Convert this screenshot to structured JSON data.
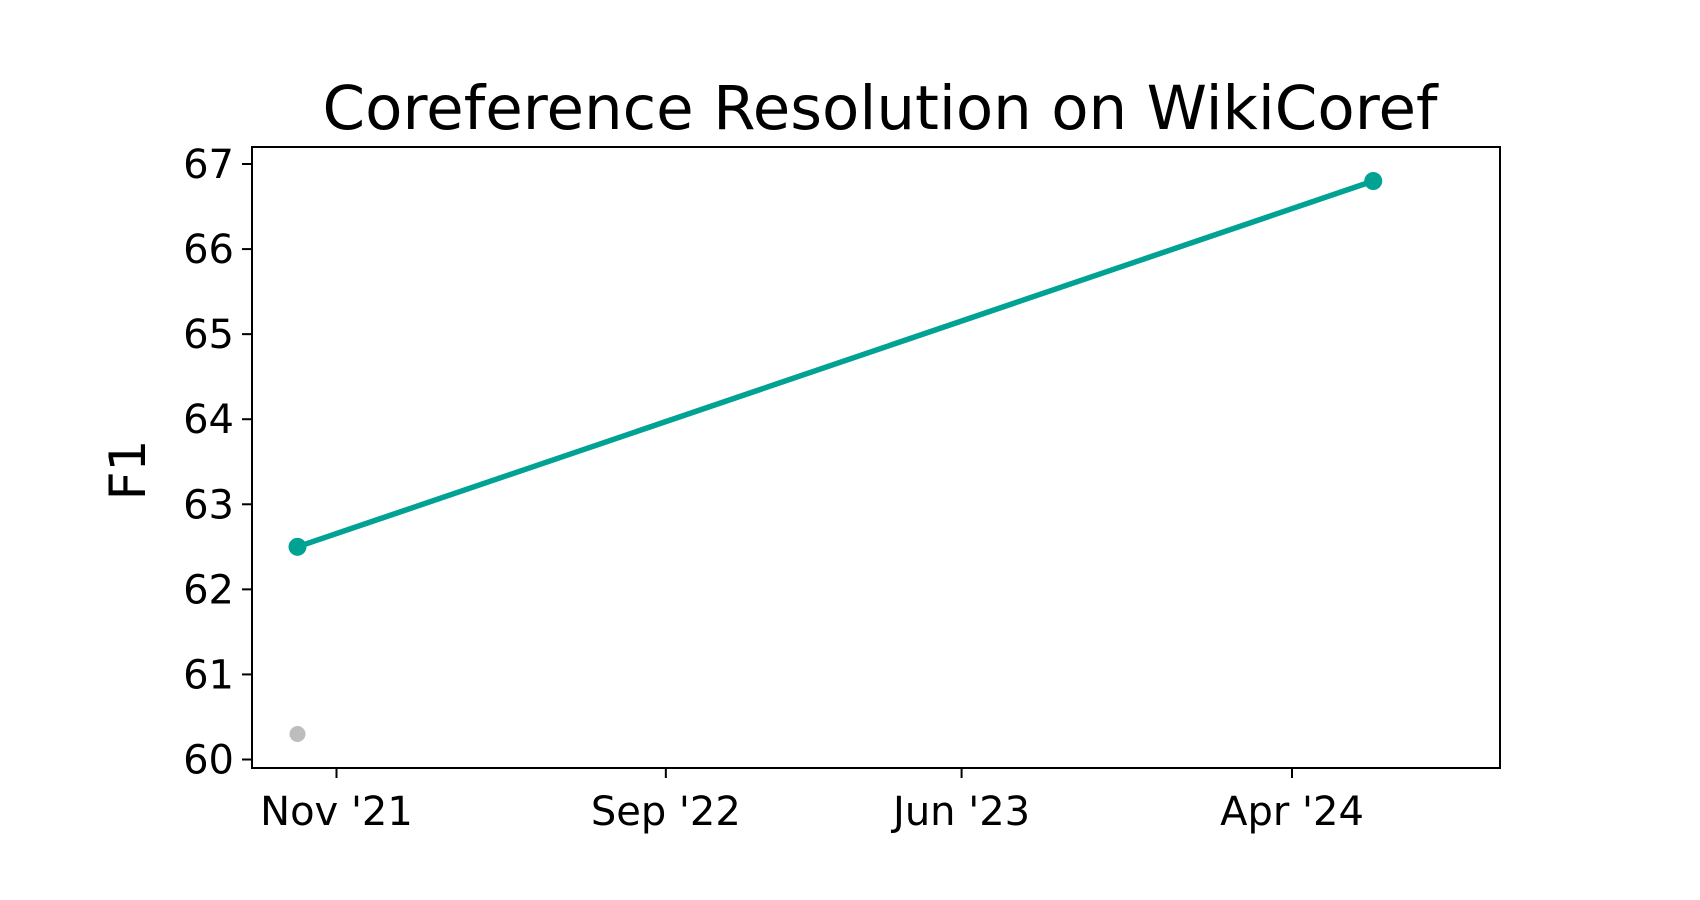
{
  "chart_data": {
    "type": "line",
    "title": "Coreference Resolution on WikiCoref",
    "xlabel": "",
    "ylabel": "F1",
    "ylim": [
      59.9,
      67.2
    ],
    "y_ticks": [
      60,
      61,
      62,
      63,
      64,
      65,
      66,
      67
    ],
    "xlim": [
      "2021-08-15",
      "2024-10-10"
    ],
    "x_ticks": [
      {
        "date": "2021-11-01",
        "label": "Nov '21"
      },
      {
        "date": "2022-09-01",
        "label": "Sep '22"
      },
      {
        "date": "2023-06-01",
        "label": "Jun '23"
      },
      {
        "date": "2024-04-01",
        "label": "Apr '24"
      }
    ],
    "grid": false,
    "series": [
      {
        "color": "#00a294",
        "points": [
          {
            "x": "2021-09-26",
            "y": 62.5
          },
          {
            "x": "2024-06-15",
            "y": 66.8
          }
        ]
      }
    ],
    "other_points": [
      {
        "x": "2021-09-26",
        "y": 60.3,
        "color": "#bdbdbd"
      }
    ]
  }
}
